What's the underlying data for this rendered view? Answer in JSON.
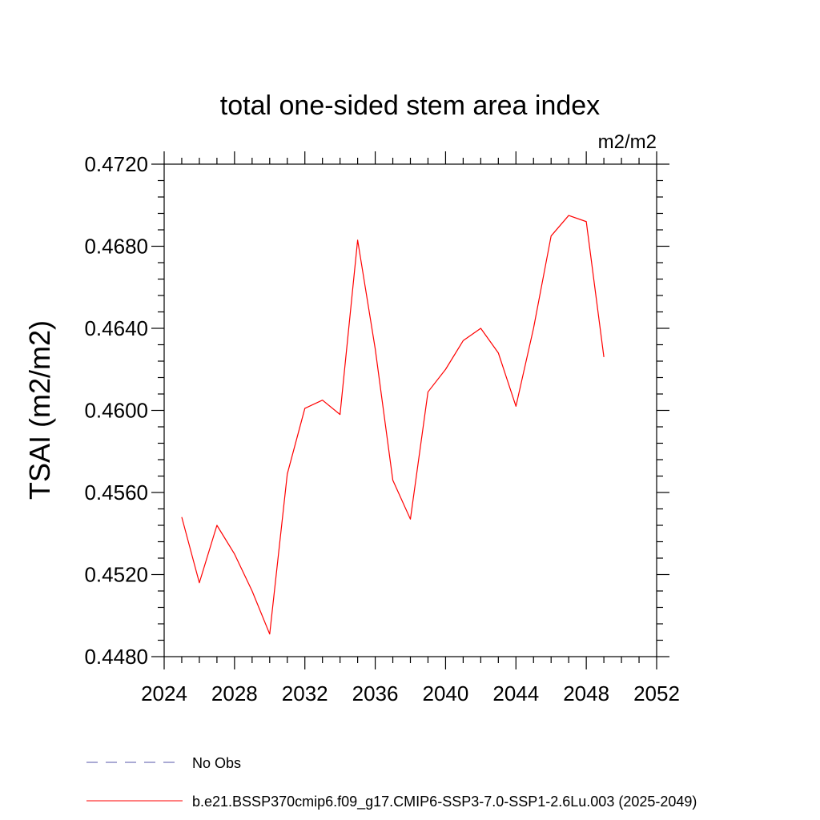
{
  "chart_data": {
    "type": "line",
    "title": "total one-sided stem area index",
    "units_label": "m2/m2",
    "xlabel": "",
    "ylabel": "TSAI  (m2/m2)",
    "xlim": [
      2024,
      2052
    ],
    "ylim": [
      0.448,
      0.472
    ],
    "x_ticks": [
      "2024",
      "2028",
      "2032",
      "2036",
      "2040",
      "2044",
      "2048",
      "2052"
    ],
    "y_ticks": [
      "0.4480",
      "0.4520",
      "0.4560",
      "0.4600",
      "0.4640",
      "0.4680",
      "0.4720"
    ],
    "grid": false,
    "legend_position": "bottom-left",
    "series": [
      {
        "name": "b.e21.BSSP370cmip6.f09_g17.CMIP6-SSP3-7.0-SSP1-2.6Lu.003 (2025-2049)",
        "color": "#ff0000",
        "style": "solid",
        "x": [
          2025,
          2026,
          2027,
          2028,
          2029,
          2030,
          2031,
          2032,
          2033,
          2034,
          2035,
          2036,
          2037,
          2038,
          2039,
          2040,
          2041,
          2042,
          2043,
          2044,
          2045,
          2046,
          2047,
          2048,
          2049
        ],
        "y": [
          0.4548,
          0.4516,
          0.4544,
          0.453,
          0.4512,
          0.4491,
          0.4569,
          0.4601,
          0.4605,
          0.4598,
          0.4683,
          0.463,
          0.4566,
          0.4547,
          0.4609,
          0.462,
          0.4634,
          0.464,
          0.4628,
          0.4602,
          0.464,
          0.4685,
          0.4695,
          0.4692,
          0.4626
        ]
      }
    ],
    "legend": [
      {
        "label": "No Obs",
        "color": "#5555aa",
        "style": "dashed"
      },
      {
        "label": "b.e21.BSSP370cmip6.f09_g17.CMIP6-SSP3-7.0-SSP1-2.6Lu.003 (2025-2049)",
        "color": "#ff0000",
        "style": "solid"
      }
    ]
  }
}
